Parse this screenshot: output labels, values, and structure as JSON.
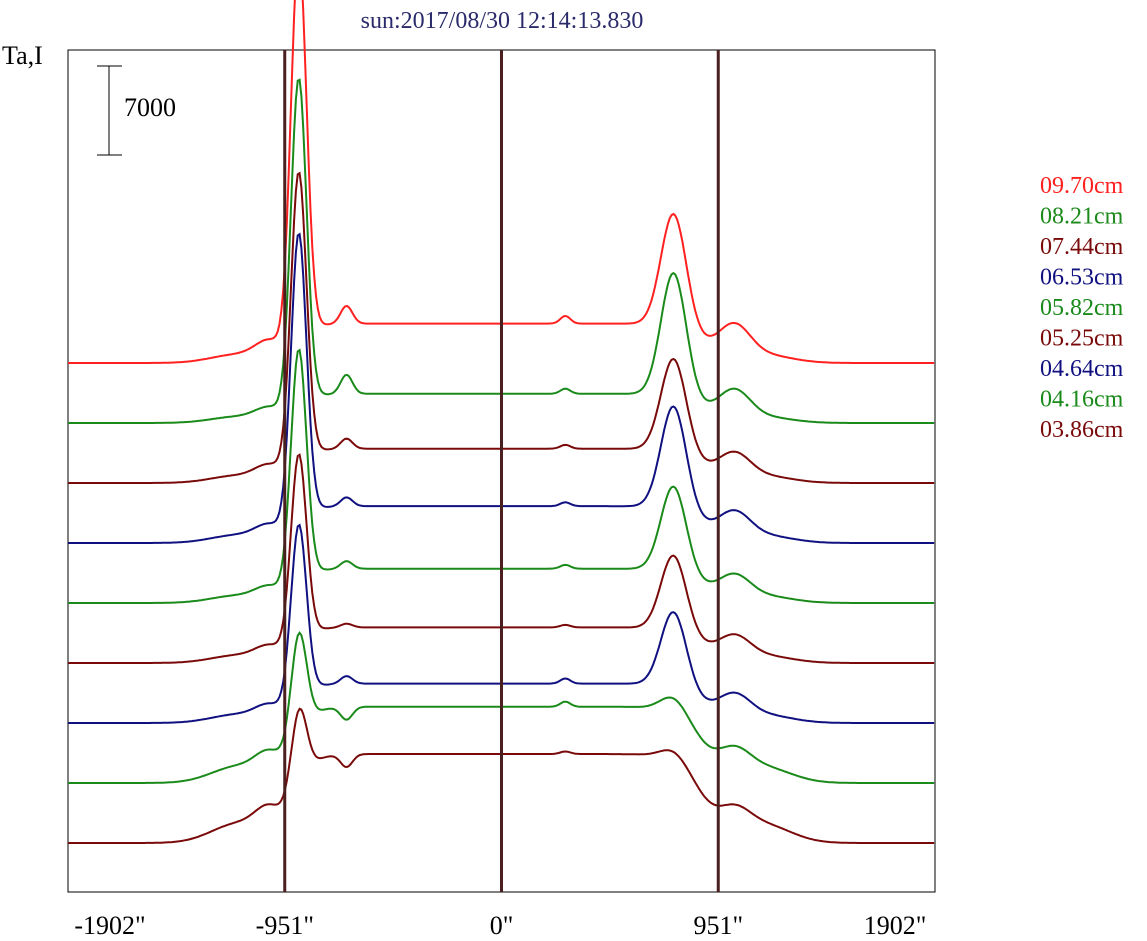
{
  "chart_data": {
    "type": "line",
    "title": "sun:2017/08/30 12:14:13.830",
    "ylabel": "Ta,I",
    "scale_bar_label": "7000",
    "x_ticks": [
      {
        "value": -1902,
        "label": "-1902\""
      },
      {
        "value": -951,
        "label": "-951\""
      },
      {
        "value": 0,
        "label": "0\""
      },
      {
        "value": 951,
        "label": "951\""
      },
      {
        "value": 1902,
        "label": "1902\""
      }
    ],
    "xlim": [
      -1902,
      1902
    ],
    "vertical_lines_at": [
      -951,
      0,
      951
    ],
    "grid": false,
    "legend_position": "right",
    "series": [
      {
        "name": "09.70cm",
        "color": "#ff2020",
        "baseline": 0,
        "left_peak": 33500,
        "left_dip": 3800,
        "secondary_bump": 4500,
        "disk_level": 3100,
        "disk_bump": 3700,
        "right_peak": 12000,
        "right_shoulder": 6800
      },
      {
        "name": "08.21cm",
        "color": "#1a8a1a",
        "baseline": 0,
        "left_peak": 28000,
        "left_dip": 2600,
        "secondary_bump": 3800,
        "disk_level": 2300,
        "disk_bump": 2700,
        "right_peak": 12000,
        "right_shoulder": 6000
      },
      {
        "name": "07.44cm",
        "color": "#7a0a0a",
        "baseline": 0,
        "left_peak": 25500,
        "left_dip": 3000,
        "secondary_bump": 3500,
        "disk_level": 2700,
        "disk_bump": 3000,
        "right_peak": 10000,
        "right_shoulder": 5200
      },
      {
        "name": "06.53cm",
        "color": "#101080",
        "baseline": 0,
        "left_peak": 25500,
        "left_dip": 3000,
        "secondary_bump": 3600,
        "disk_level": 2900,
        "disk_bump": 3200,
        "right_peak": 11000,
        "right_shoulder": 5400
      },
      {
        "name": "05.82cm",
        "color": "#1a8a1a",
        "baseline": 0,
        "left_peak": 21000,
        "left_dip": 2700,
        "secondary_bump": 3300,
        "disk_level": 2700,
        "disk_bump": 3000,
        "right_peak": 9400,
        "right_shoulder": 4800
      },
      {
        "name": "05.25cm",
        "color": "#7a0a0a",
        "baseline": 0,
        "left_peak": 17500,
        "left_dip": 2800,
        "secondary_bump": 3100,
        "disk_level": 2800,
        "disk_bump": 3000,
        "right_peak": 8700,
        "right_shoulder": 4600
      },
      {
        "name": "04.64cm",
        "color": "#101080",
        "baseline": 0,
        "left_peak": 16800,
        "left_dip": 2900,
        "secondary_bump": 3700,
        "disk_level": 3100,
        "disk_bump": 3500,
        "right_peak": 9000,
        "right_shoulder": 4800
      },
      {
        "name": "04.16cm",
        "color": "#1a8a1a",
        "baseline": 0,
        "left_peak": 14100,
        "left_dip": 4600,
        "secondary_bump": 5000,
        "disk_level": 6000,
        "disk_bump": 6400,
        "right_peak": 7200,
        "right_shoulder": 4800
      },
      {
        "name": "03.86cm",
        "color": "#7a0a0a",
        "baseline": 0,
        "left_peak": 13200,
        "left_dip": 5300,
        "secondary_bump": 6000,
        "disk_level": 7000,
        "disk_bump": 7200,
        "right_peak": 7800,
        "right_shoulder": 4600
      }
    ]
  }
}
